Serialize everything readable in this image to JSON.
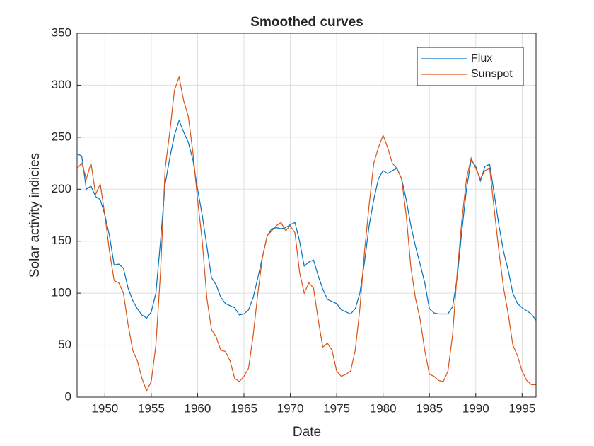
{
  "chart_data": {
    "type": "line",
    "title": "Smoothed curves",
    "x_label": "Date",
    "y_label": "Solar activity indicies",
    "x": [
      1947,
      1947.5,
      1948,
      1948.5,
      1949,
      1949.5,
      1950,
      1950.5,
      1951,
      1951.5,
      1952,
      1952.5,
      1953,
      1953.5,
      1954,
      1954.5,
      1955,
      1955.5,
      1956,
      1956.5,
      1957,
      1957.5,
      1958,
      1958.5,
      1959,
      1959.5,
      1960,
      1960.5,
      1961,
      1961.5,
      1962,
      1962.5,
      1963,
      1963.5,
      1964,
      1964.5,
      1965,
      1965.5,
      1966,
      1966.5,
      1967,
      1967.5,
      1968,
      1968.5,
      1969,
      1969.5,
      1970,
      1970.5,
      1971,
      1971.5,
      1972,
      1972.5,
      1973,
      1973.5,
      1974,
      1974.5,
      1975,
      1975.5,
      1976,
      1976.5,
      1977,
      1977.5,
      1978,
      1978.5,
      1979,
      1979.5,
      1980,
      1980.5,
      1981,
      1981.5,
      1982,
      1982.5,
      1983,
      1983.5,
      1984,
      1984.5,
      1985,
      1985.5,
      1986,
      1986.5,
      1987,
      1987.5,
      1988,
      1988.5,
      1989,
      1989.5,
      1990,
      1990.5,
      1991,
      1991.5,
      1992,
      1992.5,
      1993,
      1993.5,
      1994,
      1994.5,
      1995,
      1995.5,
      1996,
      1996.5
    ],
    "series": [
      {
        "name": "Flux",
        "color": "#0072BD",
        "values": [
          234,
          232,
          200,
          203,
          193,
          190,
          175,
          155,
          127,
          128,
          124,
          105,
          93,
          85,
          79,
          76,
          82,
          100,
          150,
          205,
          230,
          252,
          266,
          255,
          245,
          228,
          200,
          175,
          145,
          115,
          108,
          96,
          90,
          88,
          86,
          79,
          80,
          84,
          96,
          115,
          135,
          155,
          162,
          163,
          162,
          163,
          166,
          168,
          150,
          126,
          130,
          132,
          117,
          104,
          94,
          92,
          90,
          84,
          82,
          80,
          85,
          100,
          130,
          165,
          190,
          210,
          218,
          215,
          218,
          220,
          210,
          190,
          165,
          145,
          128,
          110,
          85,
          81,
          80,
          80,
          80,
          87,
          115,
          160,
          200,
          228,
          222,
          208,
          222,
          224,
          195,
          165,
          140,
          122,
          100,
          90,
          86,
          83,
          80,
          74
        ]
      },
      {
        "name": "Sunspot",
        "color": "#D95319",
        "values": [
          220,
          225,
          210,
          225,
          195,
          205,
          175,
          140,
          112,
          110,
          100,
          70,
          45,
          35,
          18,
          6,
          15,
          50,
          120,
          220,
          255,
          295,
          308,
          285,
          270,
          235,
          190,
          150,
          95,
          65,
          58,
          45,
          44,
          35,
          18,
          15,
          20,
          28,
          60,
          100,
          135,
          155,
          160,
          165,
          168,
          160,
          165,
          158,
          120,
          100,
          110,
          105,
          75,
          48,
          52,
          45,
          25,
          20,
          22,
          25,
          45,
          85,
          140,
          185,
          225,
          240,
          252,
          240,
          225,
          220,
          210,
          175,
          125,
          95,
          75,
          45,
          22,
          20,
          16,
          15,
          25,
          60,
          120,
          170,
          210,
          230,
          220,
          210,
          218,
          220,
          180,
          140,
          105,
          80,
          50,
          40,
          25,
          16,
          12,
          12
        ]
      }
    ],
    "xlim": [
      1947,
      1996.5
    ],
    "xticks": [
      1950,
      1955,
      1960,
      1965,
      1970,
      1975,
      1980,
      1985,
      1990,
      1995
    ],
    "ylim": [
      0,
      350
    ],
    "yticks": [
      0,
      50,
      100,
      150,
      200,
      250,
      300,
      350
    ],
    "grid": true,
    "legend": "northeast"
  }
}
